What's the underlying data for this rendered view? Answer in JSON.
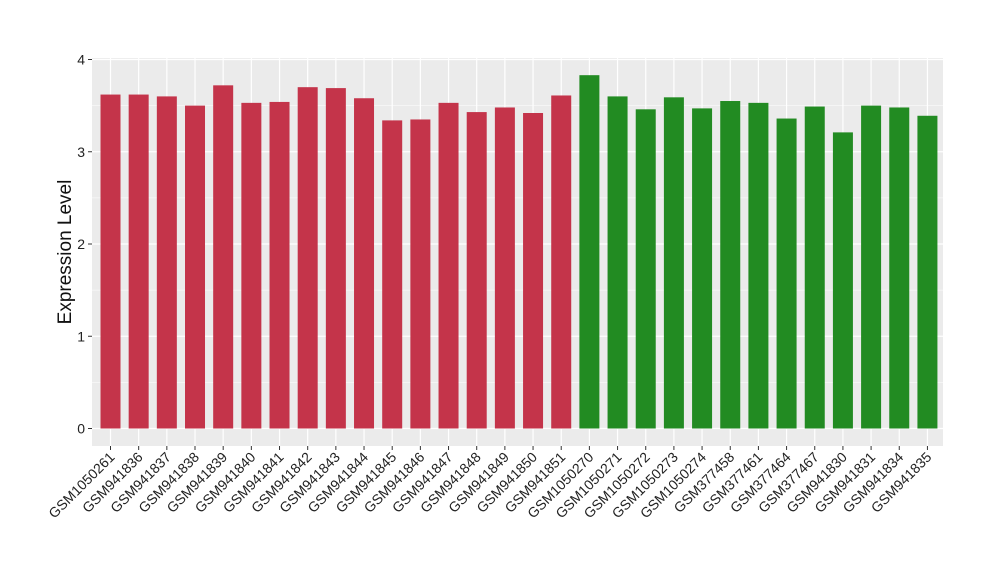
{
  "chart_data": {
    "type": "bar",
    "title": "",
    "xlabel": "",
    "ylabel": "Expression Level",
    "ylim": [
      0,
      4
    ],
    "yticks": [
      0,
      1,
      2,
      3,
      4
    ],
    "grid": true,
    "legend": "none",
    "categories": [
      "GSM1050261",
      "GSM941836",
      "GSM941837",
      "GSM941838",
      "GSM941839",
      "GSM941840",
      "GSM941841",
      "GSM941842",
      "GSM941843",
      "GSM941844",
      "GSM941845",
      "GSM941846",
      "GSM941847",
      "GSM941848",
      "GSM941849",
      "GSM941850",
      "GSM941851",
      "GSM1050270",
      "GSM1050271",
      "GSM1050272",
      "GSM1050273",
      "GSM1050274",
      "GSM377458",
      "GSM377461",
      "GSM377464",
      "GSM377467",
      "GSM941830",
      "GSM941831",
      "GSM941834",
      "GSM941835"
    ],
    "values": [
      3.62,
      3.62,
      3.6,
      3.5,
      3.72,
      3.53,
      3.54,
      3.7,
      3.69,
      3.58,
      3.34,
      3.35,
      3.53,
      3.43,
      3.48,
      3.42,
      3.61,
      3.83,
      3.6,
      3.46,
      3.59,
      3.47,
      3.55,
      3.53,
      3.36,
      3.49,
      3.21,
      3.5,
      3.48,
      3.39
    ],
    "colors": [
      "#c4344a",
      "#c4344a",
      "#c4344a",
      "#c4344a",
      "#c4344a",
      "#c4344a",
      "#c4344a",
      "#c4344a",
      "#c4344a",
      "#c4344a",
      "#c4344a",
      "#c4344a",
      "#c4344a",
      "#c4344a",
      "#c4344a",
      "#c4344a",
      "#c4344a",
      "#228b22",
      "#228b22",
      "#228b22",
      "#228b22",
      "#228b22",
      "#228b22",
      "#228b22",
      "#228b22",
      "#228b22",
      "#228b22",
      "#228b22",
      "#228b22",
      "#228b22"
    ],
    "panel_background": "#ebebeb",
    "gridline_color": "#ffffff"
  }
}
